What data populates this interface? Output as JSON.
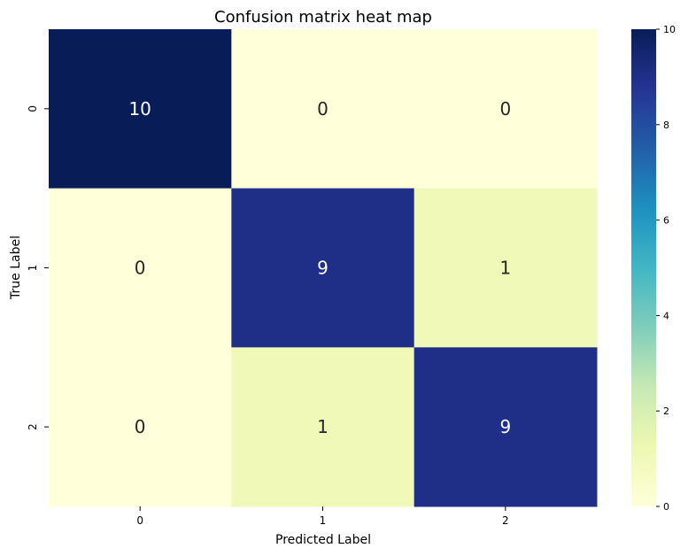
{
  "chart_data": {
    "type": "heatmap",
    "title": "Confusion matrix heat map",
    "xlabel": "Predicted Label",
    "ylabel": "True Label",
    "x_tick_labels": [
      "0",
      "1",
      "2"
    ],
    "y_tick_labels": [
      "0",
      "1",
      "2"
    ],
    "values": [
      [
        10,
        0,
        0
      ],
      [
        0,
        9,
        1
      ],
      [
        0,
        1,
        9
      ]
    ],
    "cell_labels": [
      [
        "10",
        "0",
        "0"
      ],
      [
        "0",
        "9",
        "1"
      ],
      [
        "0",
        "1",
        "9"
      ]
    ],
    "colorbar": {
      "min": 0,
      "max": 10,
      "ticks": [
        "0",
        "2",
        "4",
        "6",
        "8",
        "10"
      ]
    },
    "colormap": "YlGnBu",
    "colormap_stops": [
      "#ffffd9",
      "#edf8b1",
      "#c7e9b4",
      "#7fcdbb",
      "#41b6c4",
      "#1d91c0",
      "#225ea8",
      "#253494",
      "#081d58"
    ],
    "annotation_color_dark": "#262626",
    "annotation_color_light": "#ffffff"
  }
}
